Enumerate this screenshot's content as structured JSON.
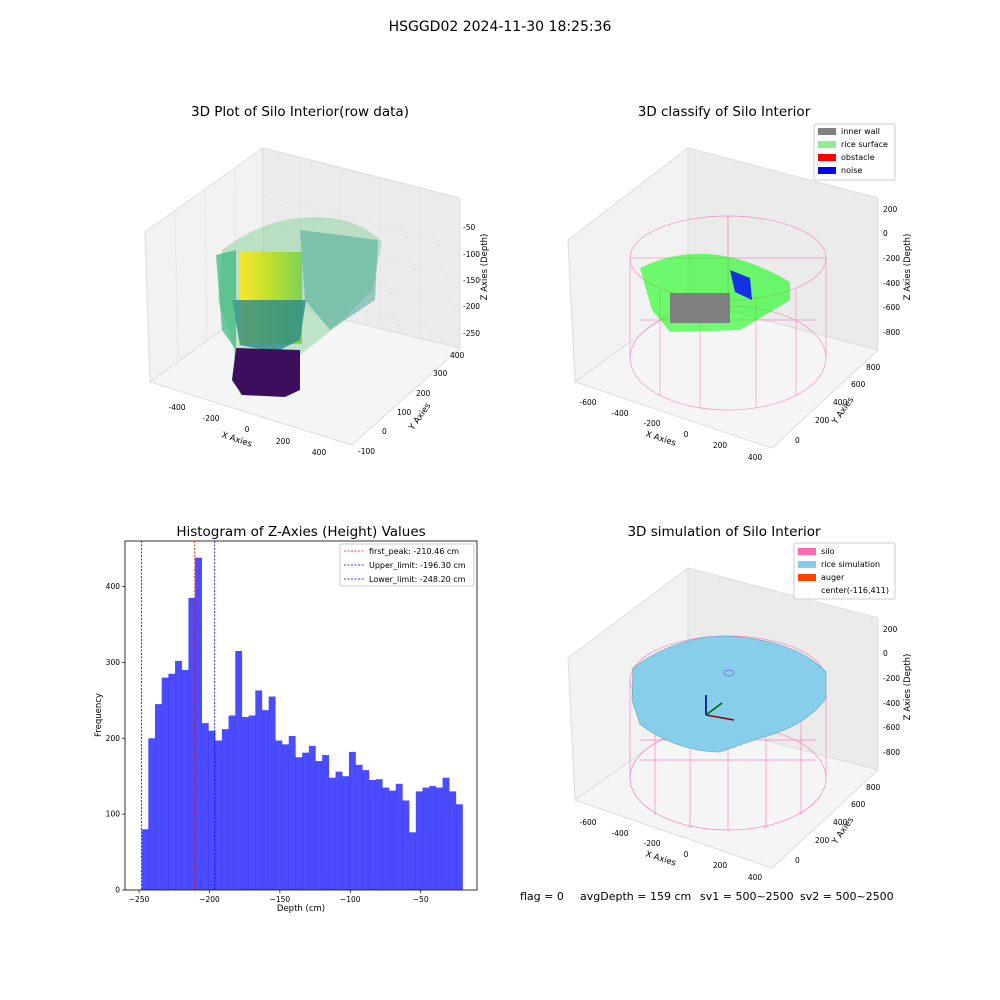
{
  "suptitle": "HSGGD02 2024-11-30 18:25:36",
  "footer": {
    "flag": "flag = 0",
    "avg_depth": "avgDepth = 159 cm",
    "sv1": "sv1 = 500~2500",
    "sv2": "sv2 = 500~2500"
  },
  "chart_data": [
    {
      "type": "scatter3d",
      "title": "3D Plot of Silo Interior(row data)",
      "xlabel": "X Axies",
      "ylabel": "Y Axies",
      "zlabel": "Z Axies (Depth)",
      "x_ticks": [
        "-400",
        "-200",
        "0",
        "200",
        "400"
      ],
      "y_ticks": [
        "-100",
        "0",
        "100",
        "200",
        "300",
        "400"
      ],
      "z_ticks": [
        "-50",
        "-100",
        "-150",
        "-200",
        "-250"
      ],
      "colormap": "viridis"
    },
    {
      "type": "scatter3d",
      "title": "3D classify of Silo Interior",
      "xlabel": "X Axies",
      "ylabel": "Y Axies",
      "zlabel": "Z Axies (Depth)",
      "x_ticks": [
        "-600",
        "-400",
        "-200",
        "0",
        "200",
        "400"
      ],
      "y_ticks": [
        "0",
        "200",
        "400",
        "600",
        "800"
      ],
      "z_ticks": [
        "200",
        "0",
        "-200",
        "-400",
        "-600",
        "-800"
      ],
      "legend": [
        {
          "label": "inner wall",
          "color": "#808080"
        },
        {
          "label": "rice surface",
          "color": "#90ee90"
        },
        {
          "label": "obstacle",
          "color": "#ff0000"
        },
        {
          "label": "noise",
          "color": "#0000ff"
        }
      ],
      "legend_position": "top-right"
    },
    {
      "type": "bar",
      "title": "Histogram of Z-Axies (Height) Values",
      "xlabel": "Depth (cm)",
      "ylabel": "Frequency",
      "xlim": [
        -260,
        -10
      ],
      "ylim": [
        0,
        460
      ],
      "x_ticks": [
        -250,
        -200,
        -150,
        -100,
        -50
      ],
      "y_ticks": [
        0,
        100,
        200,
        300,
        400
      ],
      "bar_color": "#0000ff",
      "bin_start": -248.2,
      "bin_width": 4.75,
      "values": [
        80,
        200,
        245,
        280,
        285,
        302,
        290,
        385,
        438,
        220,
        210,
        197,
        212,
        230,
        315,
        228,
        230,
        263,
        237,
        255,
        197,
        192,
        203,
        175,
        181,
        190,
        170,
        178,
        148,
        156,
        150,
        182,
        165,
        158,
        145,
        146,
        135,
        131,
        140,
        118,
        76,
        130,
        135,
        137,
        135,
        148,
        130,
        113
      ],
      "vlines": [
        {
          "label": "first_peak: -210.46 cm",
          "x": -210.46,
          "color": "#ff0000"
        },
        {
          "label": "Upper_limit: -196.30 cm",
          "x": -196.3,
          "color": "#0000ff"
        },
        {
          "label": "Lower_limit: -248.20 cm",
          "x": -248.2,
          "color": "#0000ff"
        }
      ],
      "legend_position": "top-right"
    },
    {
      "type": "surface3d",
      "title": "3D simulation of Silo Interior",
      "xlabel": "X Axies",
      "ylabel": "Y Axies",
      "zlabel": "Z Axies (Depth)",
      "x_ticks": [
        "-600",
        "-400",
        "-200",
        "0",
        "200",
        "400"
      ],
      "y_ticks": [
        "0",
        "200",
        "400",
        "600",
        "800"
      ],
      "z_ticks": [
        "200",
        "0",
        "-200",
        "-400",
        "-600",
        "-800"
      ],
      "legend": [
        {
          "label": "silo",
          "color": "#ff69b4"
        },
        {
          "label": "rice simulation",
          "color": "#87ceeb"
        },
        {
          "label": "auger",
          "color": "#ff4500"
        },
        {
          "label": "center(-116,411)",
          "color": ""
        }
      ],
      "legend_position": "top-right"
    }
  ]
}
